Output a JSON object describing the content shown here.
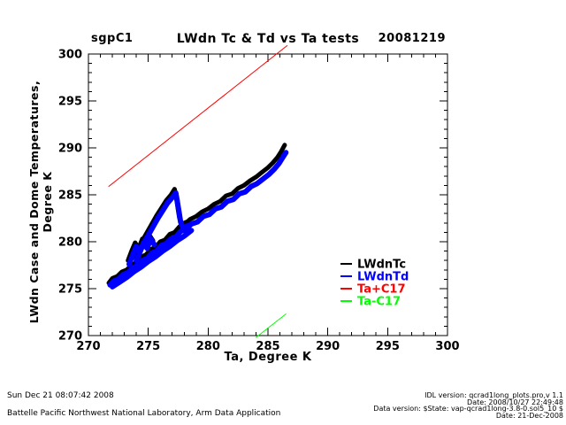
{
  "header": {
    "site": "sgpC1",
    "title": "LWdn Tc & Td vs Ta tests",
    "date": "20081219"
  },
  "chart_data": {
    "type": "scatter",
    "title": "LWdn Tc & Td vs Ta tests",
    "xlabel": "Ta, Degree K",
    "ylabel": "LWdn Case and Dome Temperatures, Degree K",
    "xlim": [
      270,
      300
    ],
    "ylim": [
      270,
      300
    ],
    "xticks": [
      270,
      275,
      280,
      285,
      290,
      295,
      300
    ],
    "yticks": [
      270,
      275,
      280,
      285,
      290,
      295,
      300
    ],
    "minor_tick_step": 1,
    "grid": false,
    "legend_position": "inside-right",
    "series": [
      {
        "name": "LWdnTc",
        "color": "#000000",
        "style": "trail",
        "width": 5,
        "segments": [
          [
            [
              271.7,
              275.6
            ],
            [
              272.0,
              276.1
            ],
            [
              272.4,
              276.3
            ],
            [
              272.8,
              276.8
            ],
            [
              273.2,
              277.0
            ],
            [
              273.6,
              277.5
            ],
            [
              274.0,
              277.8
            ],
            [
              274.4,
              278.4
            ],
            [
              274.8,
              278.6
            ],
            [
              275.2,
              279.2
            ],
            [
              275.6,
              279.4
            ],
            [
              276.0,
              280.0
            ],
            [
              276.4,
              280.2
            ],
            [
              276.8,
              280.8
            ],
            [
              277.2,
              281.0
            ],
            [
              277.6,
              281.6
            ],
            [
              278.0,
              281.8
            ],
            [
              278.5,
              282.4
            ],
            [
              279.0,
              282.7
            ],
            [
              279.5,
              283.2
            ],
            [
              280.0,
              283.5
            ],
            [
              280.5,
              284.0
            ],
            [
              281.0,
              284.3
            ],
            [
              281.5,
              284.9
            ],
            [
              282.0,
              285.1
            ],
            [
              282.5,
              285.7
            ],
            [
              283.0,
              286.0
            ],
            [
              283.5,
              286.5
            ],
            [
              284.0,
              286.9
            ],
            [
              284.5,
              287.4
            ],
            [
              285.0,
              287.9
            ],
            [
              285.4,
              288.4
            ],
            [
              285.8,
              289.0
            ],
            [
              286.1,
              289.6
            ],
            [
              286.4,
              290.3
            ]
          ],
          [
            [
              273.9,
              278.3
            ],
            [
              274.2,
              279.2
            ],
            [
              274.5,
              280.1
            ],
            [
              274.9,
              281.0
            ],
            [
              275.3,
              281.9
            ],
            [
              275.7,
              282.8
            ],
            [
              276.1,
              283.6
            ],
            [
              276.5,
              284.4
            ],
            [
              276.9,
              285.0
            ],
            [
              277.2,
              285.6
            ],
            [
              277.3,
              285.0
            ],
            [
              277.4,
              284.2
            ],
            [
              277.5,
              283.3
            ],
            [
              277.6,
              282.5
            ],
            [
              277.8,
              281.9
            ],
            [
              278.2,
              282.1
            ]
          ],
          [
            [
              273.3,
              278.0
            ],
            [
              273.6,
              279.0
            ],
            [
              273.9,
              279.9
            ],
            [
              274.2,
              279.3
            ],
            [
              274.5,
              280.3
            ],
            [
              274.8,
              279.7
            ],
            [
              275.1,
              280.7
            ],
            [
              275.4,
              280.1
            ]
          ],
          [
            [
              272.1,
              275.5
            ],
            [
              272.7,
              276.0
            ],
            [
              273.3,
              276.5
            ],
            [
              273.9,
              277.1
            ],
            [
              274.5,
              277.6
            ],
            [
              275.1,
              278.2
            ],
            [
              275.7,
              278.7
            ],
            [
              276.3,
              279.3
            ],
            [
              276.9,
              279.8
            ],
            [
              277.5,
              280.4
            ]
          ]
        ]
      },
      {
        "name": "LWdnTd",
        "color": "#0000ff",
        "style": "trail",
        "width": 6,
        "segments": [
          [
            [
              271.8,
              275.4
            ],
            [
              272.1,
              275.8
            ],
            [
              272.5,
              276.0
            ],
            [
              272.9,
              276.5
            ],
            [
              273.3,
              276.7
            ],
            [
              273.7,
              277.2
            ],
            [
              274.1,
              277.5
            ],
            [
              274.5,
              278.0
            ],
            [
              274.9,
              278.2
            ],
            [
              275.3,
              278.8
            ],
            [
              275.7,
              279.0
            ],
            [
              276.1,
              279.6
            ],
            [
              276.5,
              279.8
            ],
            [
              276.9,
              280.3
            ],
            [
              277.3,
              280.5
            ],
            [
              277.7,
              281.1
            ],
            [
              278.1,
              281.3
            ],
            [
              278.6,
              281.9
            ],
            [
              279.1,
              282.1
            ],
            [
              279.6,
              282.7
            ],
            [
              280.1,
              282.9
            ],
            [
              280.6,
              283.5
            ],
            [
              281.1,
              283.7
            ],
            [
              281.6,
              284.3
            ],
            [
              282.1,
              284.5
            ],
            [
              282.6,
              285.1
            ],
            [
              283.1,
              285.3
            ],
            [
              283.6,
              285.9
            ],
            [
              284.1,
              286.2
            ],
            [
              284.6,
              286.7
            ],
            [
              285.1,
              287.2
            ],
            [
              285.5,
              287.7
            ],
            [
              285.9,
              288.3
            ],
            [
              286.2,
              288.9
            ],
            [
              286.5,
              289.5
            ]
          ],
          [
            [
              274.0,
              278.0
            ],
            [
              274.3,
              278.9
            ],
            [
              274.6,
              279.8
            ],
            [
              275.0,
              280.7
            ],
            [
              275.4,
              281.6
            ],
            [
              275.8,
              282.5
            ],
            [
              276.2,
              283.3
            ],
            [
              276.6,
              284.1
            ],
            [
              277.0,
              284.7
            ],
            [
              277.3,
              285.2
            ],
            [
              277.4,
              284.5
            ],
            [
              277.5,
              283.7
            ],
            [
              277.6,
              282.9
            ],
            [
              277.7,
              282.1
            ],
            [
              277.9,
              281.5
            ],
            [
              278.3,
              281.7
            ]
          ],
          [
            [
              273.4,
              277.6
            ],
            [
              273.7,
              278.6
            ],
            [
              274.0,
              279.5
            ],
            [
              274.3,
              278.9
            ],
            [
              274.6,
              279.9
            ],
            [
              274.9,
              279.3
            ],
            [
              275.2,
              280.3
            ],
            [
              275.5,
              279.7
            ]
          ],
          [
            [
              272.0,
              275.2
            ],
            [
              272.6,
              275.7
            ],
            [
              273.2,
              276.2
            ],
            [
              273.8,
              276.8
            ],
            [
              274.4,
              277.3
            ],
            [
              275.0,
              277.9
            ],
            [
              275.6,
              278.4
            ],
            [
              276.2,
              279.0
            ],
            [
              276.8,
              279.5
            ],
            [
              277.4,
              280.1
            ],
            [
              278.0,
              280.6
            ],
            [
              278.6,
              281.2
            ]
          ]
        ]
      },
      {
        "name": "Ta+C17",
        "color": "#ff0000",
        "style": "line",
        "width": 1,
        "segments": [
          [
            [
              271.7,
              285.9
            ],
            [
              286.6,
              300.9
            ]
          ]
        ]
      },
      {
        "name": "Ta-C17",
        "color": "#00ff00",
        "style": "line",
        "width": 1,
        "segments": [
          [
            [
              284.0,
              269.8
            ],
            [
              286.5,
              272.3
            ]
          ]
        ]
      }
    ]
  },
  "footer": {
    "timestamp": "Sun Dec 21 08:07:42 2008",
    "organization": "Battelle Pacific Northwest National Laboratory, Arm Data Application",
    "right_lines": [
      "IDL version: qcrad1long_plots.pro,v 1.1",
      "Date: 2008/10/27 22:49:48",
      "Data version: $State: vap-qcrad1long-3.8-0.sol5_10 $",
      "Date: 21-Dec-2008"
    ]
  }
}
